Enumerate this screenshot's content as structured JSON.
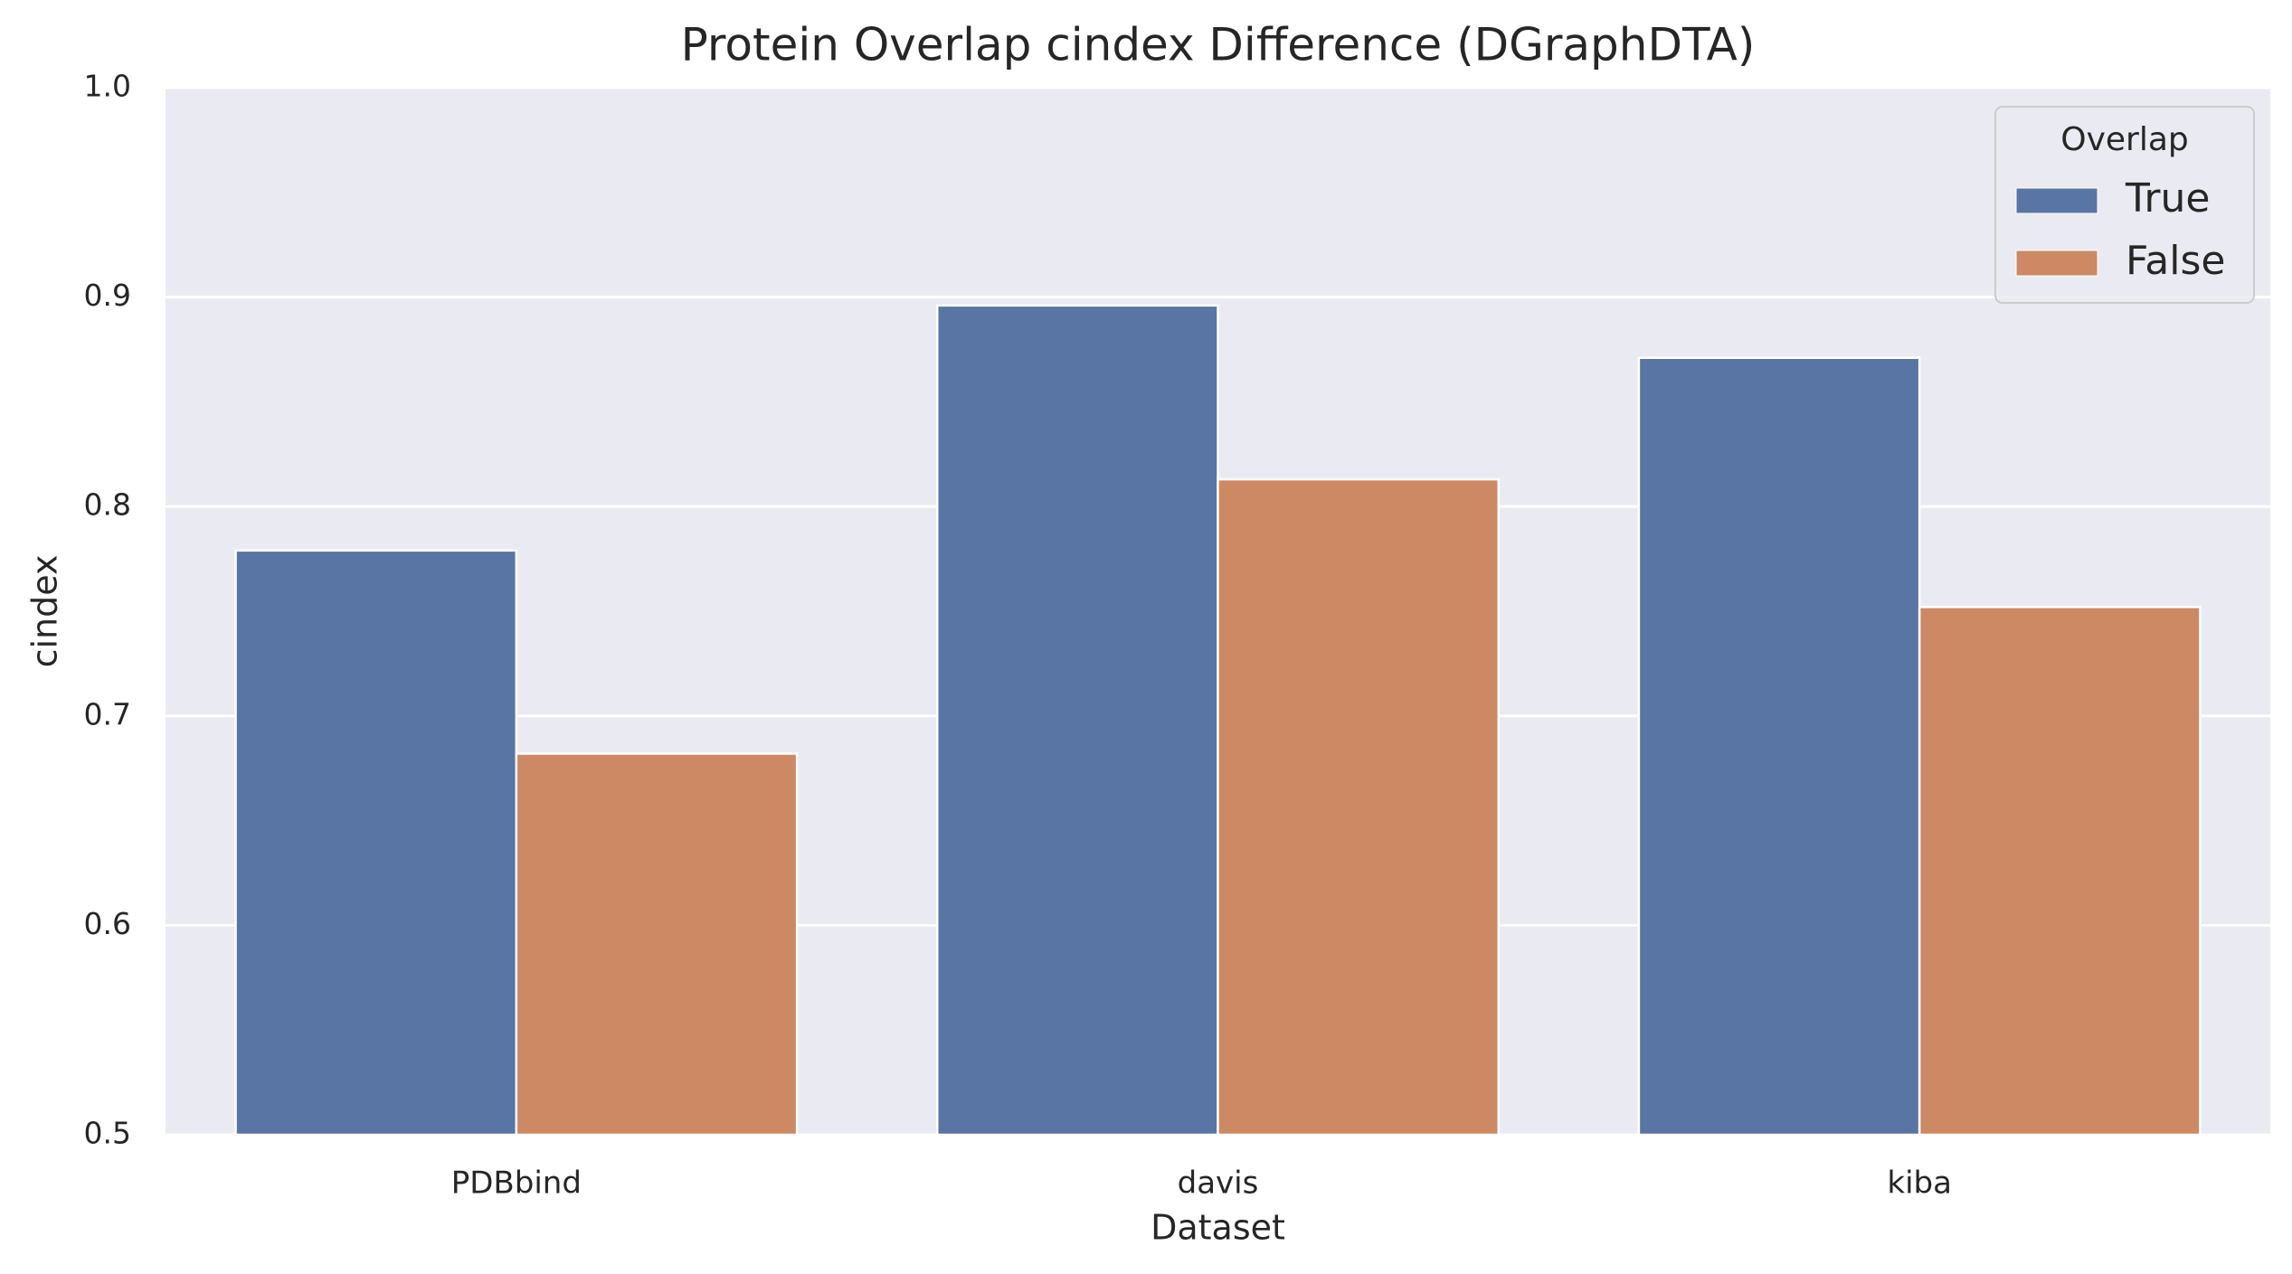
{
  "chart_data": {
    "type": "bar",
    "title": "Protein Overlap cindex Difference (DGraphDTA)",
    "xlabel": "Dataset",
    "ylabel": "cindex",
    "categories": [
      "PDBbind",
      "davis",
      "kiba"
    ],
    "ylim": [
      0.5,
      1.0
    ],
    "yticks": [
      0.5,
      0.6,
      0.7,
      0.8,
      0.9,
      1.0
    ],
    "ytick_labels": [
      "0.5",
      "0.6",
      "0.7",
      "0.8",
      "0.9",
      "1.0"
    ],
    "grid": true,
    "legend": {
      "title": "Overlap",
      "placement": "top-right"
    },
    "series": [
      {
        "name": "True",
        "values": [
          0.779,
          0.896,
          0.871
        ],
        "color": "#5975a4"
      },
      {
        "name": "False",
        "values": [
          0.682,
          0.813,
          0.752
        ],
        "color": "#cc8963"
      }
    ],
    "colors": {
      "plot_background": "#eaeaf2",
      "gridline": "#ffffff",
      "text": "#262626"
    }
  }
}
